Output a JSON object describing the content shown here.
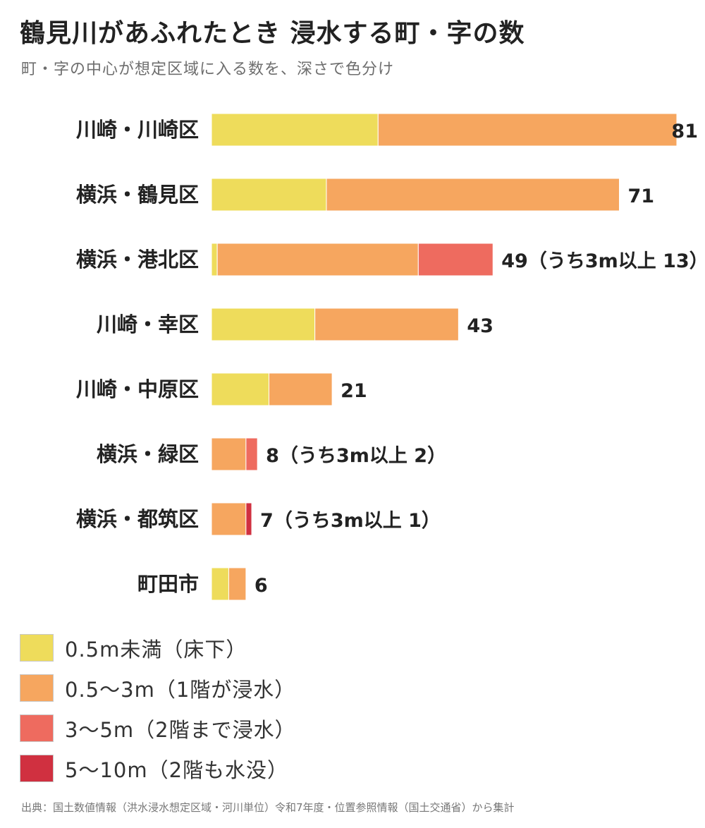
{
  "title": "鶴見川があふれたとき 浸水する町・字の数",
  "subtitle": "町・字の中心が想定区域に入る数を、深さで色分け",
  "colors": {
    "lt_0_5m": "#eedc5b",
    "0_5_3m": "#f6a65f",
    "3_5m": "#ee6b5f",
    "5_10m": "#d03040"
  },
  "chart_data": {
    "type": "bar",
    "orientation": "horizontal",
    "stacked": true,
    "categories": [
      "川崎・川崎区",
      "横浜・鶴見区",
      "横浜・港北区",
      "川崎・幸区",
      "川崎・中原区",
      "横浜・緑区",
      "横浜・都筑区",
      "町田市"
    ],
    "series": [
      {
        "name": "0.5m未満（床下）",
        "color": "#eedc5b",
        "values": [
          29,
          20,
          1,
          18,
          10,
          0,
          0,
          3
        ]
      },
      {
        "name": "0.5〜3m（1階が浸水）",
        "color": "#f6a65f",
        "values": [
          52,
          51,
          35,
          25,
          11,
          6,
          6,
          3
        ]
      },
      {
        "name": "3〜5m（2階まで浸水）",
        "color": "#ee6b5f",
        "values": [
          0,
          0,
          13,
          0,
          0,
          2,
          0,
          0
        ]
      },
      {
        "name": "5〜10m（2階も水没）",
        "color": "#d03040",
        "values": [
          0,
          0,
          0,
          0,
          0,
          0,
          1,
          0
        ]
      }
    ],
    "totals": [
      81,
      71,
      49,
      43,
      21,
      8,
      7,
      6
    ],
    "value_labels": [
      "81",
      "71",
      "49（うち3m以上 13）",
      "43",
      "21",
      "8（うち3m以上 2）",
      "7（うち3m以上 1）",
      "6"
    ],
    "xlim": [
      0,
      81
    ],
    "grid": false,
    "legend": "bottom-left"
  },
  "legend_items": [
    {
      "label": "0.5m未満（床下）",
      "color": "#eedc5b"
    },
    {
      "label": "0.5〜3m（1階が浸水）",
      "color": "#f6a65f"
    },
    {
      "label": "3〜5m（2階まで浸水）",
      "color": "#ee6b5f"
    },
    {
      "label": "5〜10m（2階も水没）",
      "color": "#d03040"
    }
  ],
  "source": "出典：国土数値情報（洪水浸水想定区域・河川単位）令和7年度・位置参照情報（国土交通省）から集計"
}
